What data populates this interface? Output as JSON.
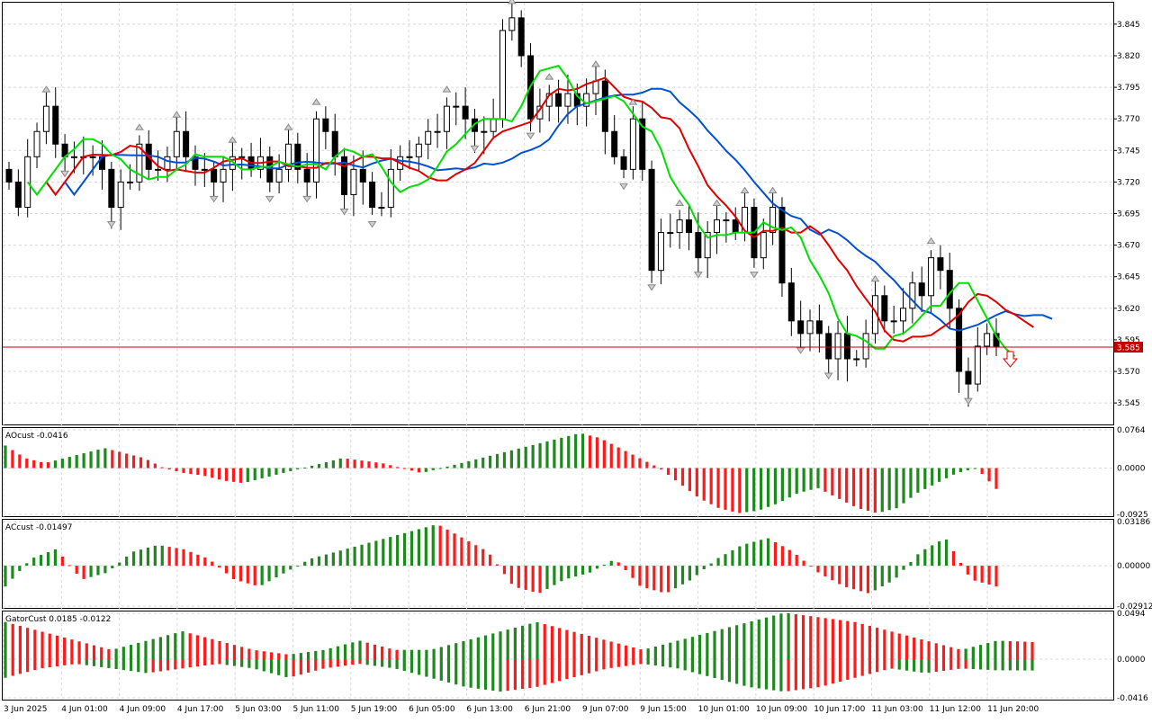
{
  "price_pane": {
    "ylim": [
      3.528,
      3.862
    ],
    "y_ticks": [
      "3.845",
      "3.820",
      "3.795",
      "3.770",
      "3.745",
      "3.720",
      "3.695",
      "3.670",
      "3.645",
      "3.620",
      "3.595",
      "3.570",
      "3.545"
    ],
    "current_price": 3.585,
    "current_price_label": "3.585",
    "signal": "sell-arrow"
  },
  "ao_pane": {
    "label": "AOcust -0.0416",
    "ticks": [
      "0.0764",
      "0.0000",
      "-0.0925"
    ],
    "ylim": [
      -0.0925,
      0.0764
    ]
  },
  "ac_pane": {
    "label": "ACcust -0.01497",
    "ticks": [
      "0.03186",
      "0.00000",
      "-0.02912"
    ],
    "ylim": [
      -0.02912,
      0.03186
    ]
  },
  "gator_pane": {
    "label": "GatorCust 0.0185 -0.0122",
    "ticks": [
      "0.0494",
      "0.0000",
      "-0.0416"
    ],
    "ylim": [
      -0.0416,
      0.0494
    ]
  },
  "x_labels": [
    "3 Jun 2025",
    "4 Jun 01:00",
    "4 Jun 09:00",
    "4 Jun 17:00",
    "5 Jun 03:00",
    "5 Jun 11:00",
    "5 Jun 19:00",
    "6 Jun 05:00",
    "6 Jun 13:00",
    "6 Jun 21:00",
    "9 Jun 07:00",
    "9 Jun 15:00",
    "10 Jun 01:00",
    "10 Jun 09:00",
    "10 Jun 17:00",
    "11 Jun 03:00",
    "11 Jun 12:00",
    "11 Jun 20:00"
  ],
  "colors": {
    "jaw": "#0050d0",
    "teeth": "#e00000",
    "lips": "#00e000",
    "up_bar": "#1e8a1e",
    "down_bar": "#ff1a1a",
    "price_line": "#c00000",
    "grid": "#d8d8d8"
  },
  "chart_data": {
    "type": "candlestick",
    "note_sources": "OHLC candles with Alligator lines, fractals, AO, AC and Gator histograms",
    "candles_close": [
      3.72,
      3.7,
      3.74,
      3.76,
      3.78,
      3.75,
      3.74,
      3.74,
      3.74,
      3.74,
      3.73,
      3.7,
      3.72,
      3.72,
      3.75,
      3.73,
      3.73,
      3.74,
      3.76,
      3.74,
      3.73,
      3.73,
      3.72,
      3.73,
      3.74,
      3.74,
      3.73,
      3.74,
      3.72,
      3.73,
      3.75,
      3.73,
      3.72,
      3.77,
      3.76,
      3.74,
      3.71,
      3.73,
      3.72,
      3.7,
      3.7,
      3.73,
      3.74,
      3.74,
      3.75,
      3.76,
      3.76,
      3.78,
      3.78,
      3.77,
      3.76,
      3.76,
      3.77,
      3.84,
      3.85,
      3.82,
      3.77,
      3.78,
      3.79,
      3.78,
      3.79,
      3.78,
      3.79,
      3.8,
      3.76,
      3.74,
      3.73,
      3.77,
      3.73,
      3.65,
      3.68,
      3.68,
      3.69,
      3.68,
      3.66,
      3.68,
      3.69,
      3.69,
      3.68,
      3.7,
      3.66,
      3.68,
      3.7,
      3.64,
      3.61,
      3.6,
      3.61,
      3.6,
      3.58,
      3.6,
      3.58,
      3.58,
      3.6,
      3.63,
      3.61,
      3.61,
      3.62,
      3.64,
      3.63,
      3.66,
      3.65,
      3.62,
      3.57,
      3.56,
      3.59,
      3.6,
      3.59
    ],
    "ao_values": [
      0.045,
      0.02,
      0.01,
      0.02,
      0.03,
      0.04,
      0.03,
      0.02,
      0.0,
      -0.01,
      -0.015,
      -0.025,
      -0.03,
      -0.02,
      -0.01,
      0.0,
      0.01,
      0.02,
      0.015,
      0.01,
      0.0,
      -0.01,
      0.0,
      0.01,
      0.02,
      0.03,
      0.04,
      0.05,
      0.06,
      0.07,
      0.06,
      0.04,
      0.02,
      0.0,
      -0.03,
      -0.06,
      -0.08,
      -0.09,
      -0.085,
      -0.07,
      -0.05,
      -0.04,
      -0.06,
      -0.08,
      -0.09,
      -0.08,
      -0.05,
      -0.03,
      -0.01,
      0.0,
      -0.0416
    ],
    "ac_values": [
      -0.015,
      0.005,
      0.012,
      -0.01,
      -0.005,
      0.01,
      0.015,
      0.012,
      0.005,
      -0.01,
      -0.015,
      -0.005,
      0.005,
      0.01,
      0.015,
      0.02,
      0.025,
      0.03,
      0.02,
      0.01,
      -0.015,
      -0.02,
      -0.01,
      -0.005,
      0.005,
      -0.015,
      -0.02,
      -0.01,
      0.005,
      0.015,
      0.02,
      0.01,
      -0.005,
      -0.015,
      -0.02,
      -0.01,
      0.01,
      0.02,
      -0.01,
      -0.01497
    ],
    "gator_upper": [
      0.04,
      0.03,
      0.02,
      0.01,
      0.02,
      0.03,
      0.02,
      0.01,
      0.005,
      0.01,
      0.02,
      0.01,
      0.01,
      0.02,
      0.03,
      0.04,
      0.03,
      0.02,
      0.01,
      0.02,
      0.03,
      0.04,
      0.05,
      0.045,
      0.04,
      0.03,
      0.02,
      0.01,
      0.02,
      0.0185
    ],
    "gator_lower": [
      -0.02,
      -0.01,
      -0.005,
      -0.01,
      -0.015,
      -0.01,
      -0.005,
      -0.01,
      -0.02,
      -0.01,
      -0.005,
      -0.01,
      -0.02,
      -0.03,
      -0.035,
      -0.03,
      -0.02,
      -0.01,
      -0.005,
      -0.01,
      -0.02,
      -0.03,
      -0.035,
      -0.03,
      -0.02,
      -0.01,
      -0.015,
      -0.01,
      -0.012,
      -0.0122
    ]
  }
}
